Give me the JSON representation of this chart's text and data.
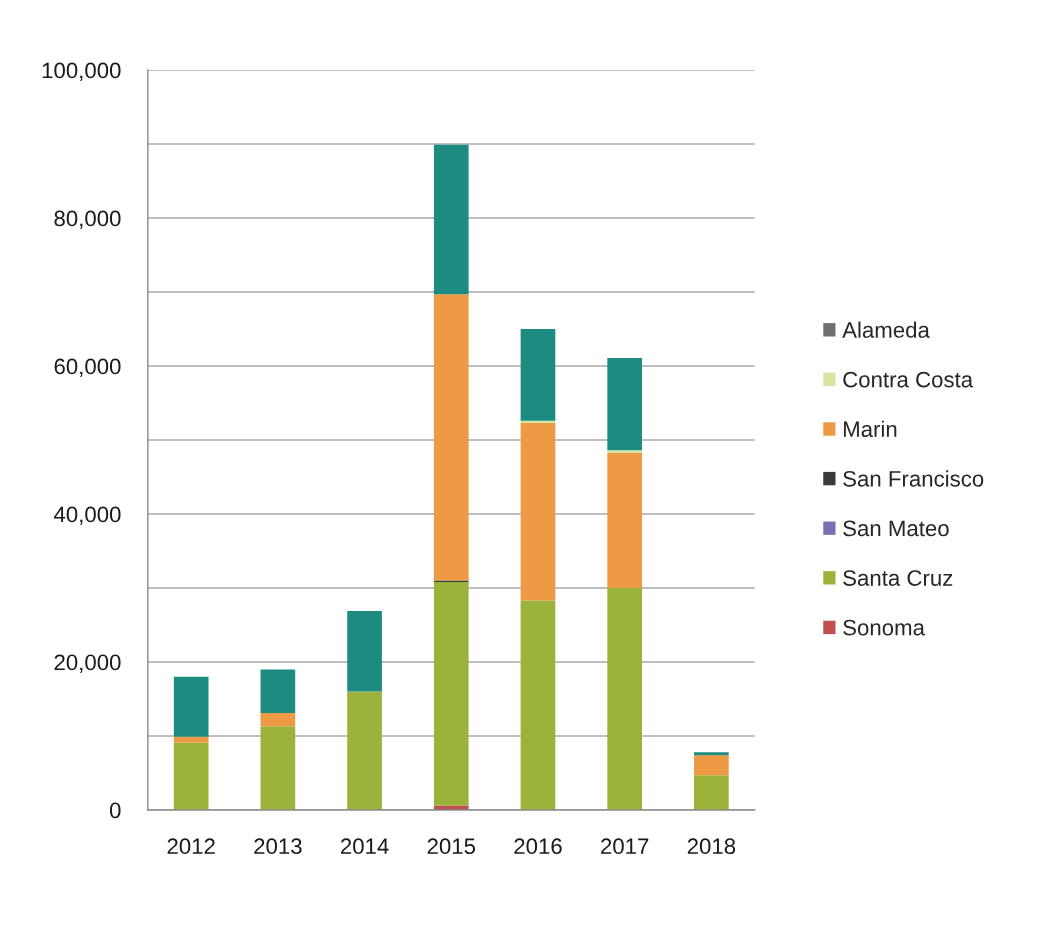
{
  "chart_data": {
    "type": "bar",
    "stacked": true,
    "categories": [
      "2012",
      "2013",
      "2014",
      "2015",
      "2016",
      "2017",
      "2018"
    ],
    "series": [
      {
        "name": "Sonoma",
        "color": "#c0504d",
        "values": [
          null,
          null,
          null,
          600,
          null,
          null,
          null
        ]
      },
      {
        "name": "Santa Cruz",
        "color": "#9bb33a",
        "values": [
          9100,
          11300,
          16000,
          30200,
          28300,
          30000,
          4700
        ]
      },
      {
        "name": "San Mateo",
        "color": "#7a6fb0",
        "values": [
          null,
          null,
          null,
          null,
          null,
          null,
          null
        ]
      },
      {
        "name": "San Francisco",
        "color": "#3a3a3a",
        "values": [
          null,
          null,
          null,
          200,
          null,
          null,
          null
        ]
      },
      {
        "name": "Marin",
        "color": "#ee9a45",
        "values": [
          800,
          1800,
          null,
          38700,
          24000,
          18300,
          2700
        ]
      },
      {
        "name": "Contra Costa",
        "color": "#d4e6a0",
        "values": [
          null,
          null,
          null,
          null,
          300,
          300,
          null
        ]
      },
      {
        "name": "Alameda",
        "color": "#707070",
        "values": [
          null,
          null,
          null,
          null,
          null,
          null,
          null
        ]
      },
      {
        "color": "#1e8b80",
        "values": [
          8100,
          5900,
          10900,
          20200,
          12400,
          12500,
          400
        ]
      }
    ],
    "ylim": [
      0,
      100000
    ],
    "yticks": [
      0,
      {
        "value": 10000,
        "label": null
      },
      {
        "value": 20000,
        "label": "20,000"
      },
      {
        "value": 30000,
        "label": null
      },
      {
        "value": 40000,
        "label": "40,000"
      },
      {
        "value": 50000,
        "label": null
      },
      {
        "value": 60000,
        "label": "60,000"
      },
      {
        "value": 70000,
        "label": null
      },
      {
        "value": 80000,
        "label": "80,000"
      },
      {
        "value": 90000,
        "label": null
      },
      {
        "value": 100000,
        "label": "100,000"
      }
    ],
    "grid": "y",
    "legend": "right"
  }
}
